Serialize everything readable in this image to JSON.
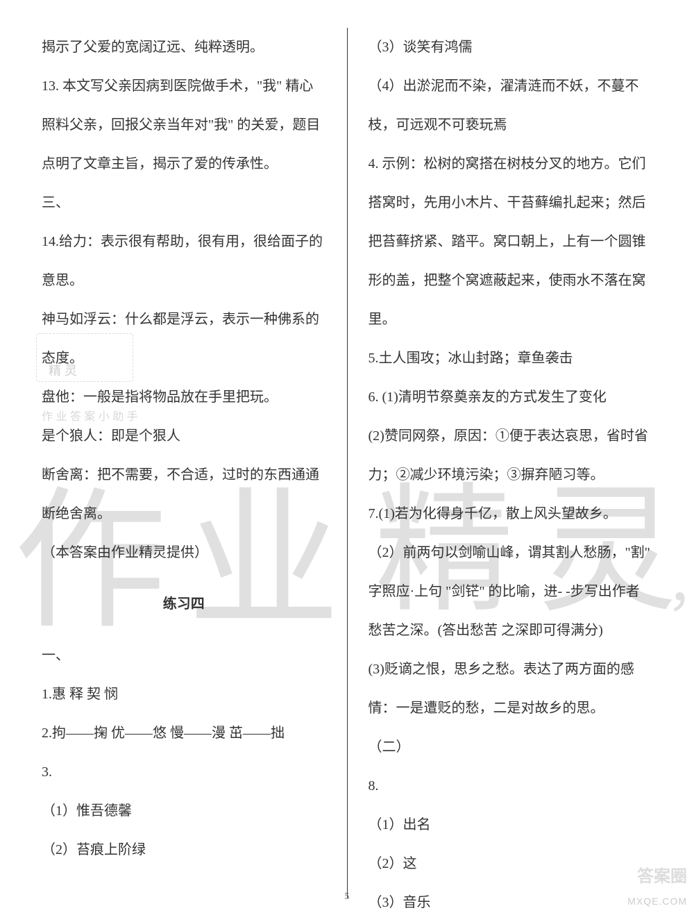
{
  "text_color": "#333333",
  "background_color": "#ffffff",
  "divider_color": "#333333",
  "watermark_color": "#e0e0e0",
  "font_size_body": 20,
  "line_height": 2.8,
  "page_number": "5",
  "left_column": {
    "paragraphs": [
      "揭示了父爱的宽阔辽远、纯粹透明。",
      "13. 本文写父亲因病到医院做手术，\"我\" 精心照料父亲，回报父亲当年对\"我\" 的关爱，题目点明了文章主旨，揭示了爱的传承性。",
      "三、",
      "14.给力：表示很有帮助，很有用，很给面子的意思。",
      "神马如浮云：什么都是浮云，表示一种佛系的态度。",
      "盘他：一般是指将物品放在手里把玩。",
      "是个狼人：即是个狠人",
      "断舍离：把不需要，不合适，过时的东西通通断绝舍离。",
      "（本答案由作业精灵提供）"
    ],
    "section_title": "练习四",
    "after_title": [
      "一、",
      "1.惠 释 契 悯",
      "2.拘——掬 优——悠 慢——漫 茁——拙",
      "3.",
      "（1）惟吾德馨",
      "（2）苔痕上阶绿"
    ]
  },
  "right_column": {
    "paragraphs": [
      "（3）谈笑有鸿儒",
      "（4）出淤泥而不染，濯清涟而不妖，不蔓不枝，可远观不可亵玩焉",
      "4. 示例：松树的窝搭在树枝分叉的地方。它们搭窝时，先用小木片、干苔藓编扎起来；然后把苔藓挤紧、踏平。窝口朝上，上有一个圆锥形的盖，把整个窝遮蔽起来，使雨水不落在窝里。",
      "5.土人围攻；冰山封路；章鱼袭击",
      "6. (1)清明节祭奠亲友的方式发生了变化",
      "(2)赞同网祭，原因：①便于表达哀思，省时省力；②减少环境污染；③摒弃陋习等。",
      "7.(1)若为化得身千亿，散上风头望故乡。",
      "（2）前两句以剑喻山峰，谓其割人愁肠，\"割\" 字照应·上句 \"剑铓\" 的比喻，进- -步写出作者愁苦之深。(答出愁苦 之深即可得满分)",
      "(3)贬谪之恨，思乡之愁。表达了两方面的感情：一是遭贬的愁，二是对故乡的思。",
      "（二）",
      "8.",
      "（1）出名",
      "（2）这",
      "（3）音乐"
    ]
  },
  "watermarks": {
    "large_left": "作业",
    "large_right": "精 灵",
    "comma": "，",
    "small1": "精 灵",
    "small2": "作 业 答 案 小 助 手"
  },
  "corner_badge": {
    "line1": "答案圈",
    "line2": "MXQE.COM"
  }
}
